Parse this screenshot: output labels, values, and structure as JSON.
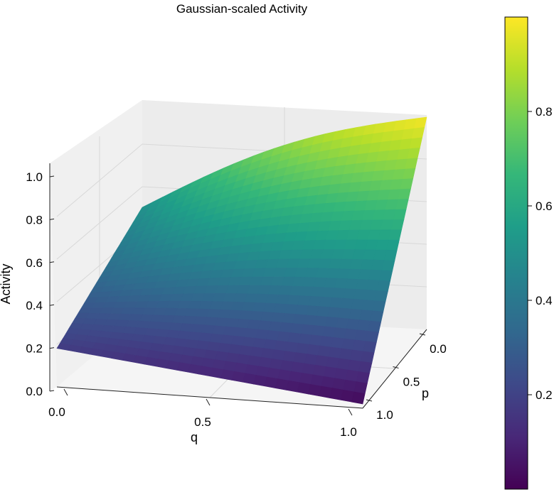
{
  "chart_data": {
    "type": "surface3d",
    "title": "Gaussian-scaled Activity",
    "xlabel": "q",
    "ylabel": "p",
    "zlabel": "Activity",
    "xlim": [
      0,
      1
    ],
    "ylim": [
      0,
      1
    ],
    "zlim": [
      0,
      1
    ],
    "x_ticks": [
      "0.0",
      "0.5",
      "1.0"
    ],
    "y_ticks": [
      "0.0",
      "0.5",
      "1.0"
    ],
    "z_ticks": [
      "0.0",
      "0.2",
      "0.4",
      "0.6",
      "0.8",
      "1.0"
    ],
    "colormap": "viridis",
    "grid": true,
    "colorbar": {
      "range": [
        0,
        1
      ],
      "ticks": [
        "0.2",
        "0.4",
        "0.6",
        "0.8"
      ],
      "placement": "right"
    },
    "surface_corners": [
      {
        "q": 0,
        "p": 1,
        "activity": 0.18
      },
      {
        "q": 0,
        "p": 0,
        "activity": 0.5
      },
      {
        "q": 1,
        "p": 0,
        "activity": 0.99
      },
      {
        "q": 1,
        "p": 1,
        "activity": 0.02
      }
    ],
    "colors": [
      "#440154",
      "#482878",
      "#3e4989",
      "#31688e",
      "#26828e",
      "#1f9e89",
      "#35b779",
      "#6ece58",
      "#b5de2b",
      "#fde725"
    ]
  }
}
